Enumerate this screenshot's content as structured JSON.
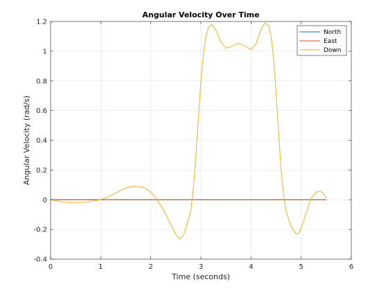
{
  "chart_data": {
    "type": "line",
    "title": "Angular Velocity Over Time",
    "xlabel": "Time (seconds)",
    "ylabel": "Angular Velocity (rad/s)",
    "xlim": [
      0,
      6
    ],
    "ylim": [
      -0.4,
      1.2
    ],
    "xticks": [
      0,
      1,
      2,
      3,
      4,
      5,
      6
    ],
    "yticks": [
      -0.4,
      -0.2,
      0,
      0.2,
      0.4,
      0.6,
      0.8,
      1,
      1.2
    ],
    "xtick_labels": [
      "0",
      "1",
      "2",
      "3",
      "4",
      "5",
      "6"
    ],
    "ytick_labels": [
      "-0.4",
      "-0.2",
      "0",
      "0.2",
      "0.4",
      "0.6",
      "0.8",
      "1",
      "1.2"
    ],
    "grid": true,
    "legend_position": "top-right",
    "series": [
      {
        "name": "North",
        "color": "#0072bd",
        "points": [
          [
            0,
            0
          ],
          [
            5.5,
            0
          ]
        ]
      },
      {
        "name": "East",
        "color": "#d95319",
        "points": [
          [
            0,
            0
          ],
          [
            5.5,
            0
          ]
        ]
      },
      {
        "name": "Down",
        "color": "#edb120",
        "points": [
          [
            0,
            0
          ],
          [
            0.1,
            -0.006
          ],
          [
            0.2,
            -0.012
          ],
          [
            0.3,
            -0.017
          ],
          [
            0.4,
            -0.02
          ],
          [
            0.5,
            -0.021
          ],
          [
            0.6,
            -0.02
          ],
          [
            0.7,
            -0.017
          ],
          [
            0.8,
            -0.012
          ],
          [
            0.9,
            -0.006
          ],
          [
            1.0,
            0
          ],
          [
            1.1,
            0.012
          ],
          [
            1.2,
            0.027
          ],
          [
            1.3,
            0.045
          ],
          [
            1.4,
            0.063
          ],
          [
            1.5,
            0.078
          ],
          [
            1.6,
            0.087
          ],
          [
            1.7,
            0.09
          ],
          [
            1.8,
            0.087
          ],
          [
            1.9,
            0.075
          ],
          [
            2.0,
            0.05
          ],
          [
            2.1,
            0.013
          ],
          [
            2.2,
            -0.04
          ],
          [
            2.3,
            -0.1
          ],
          [
            2.4,
            -0.17
          ],
          [
            2.5,
            -0.235
          ],
          [
            2.58,
            -0.265
          ],
          [
            2.65,
            -0.24
          ],
          [
            2.72,
            -0.17
          ],
          [
            2.8,
            -0.07
          ],
          [
            2.85,
            0.08
          ],
          [
            2.9,
            0.3
          ],
          [
            2.95,
            0.55
          ],
          [
            3.0,
            0.8
          ],
          [
            3.05,
            0.98
          ],
          [
            3.1,
            1.1
          ],
          [
            3.15,
            1.16
          ],
          [
            3.22,
            1.18
          ],
          [
            3.3,
            1.14
          ],
          [
            3.4,
            1.06
          ],
          [
            3.5,
            1.02
          ],
          [
            3.6,
            1.03
          ],
          [
            3.75,
            1.055
          ],
          [
            3.9,
            1.03
          ],
          [
            4.0,
            1.01
          ],
          [
            4.1,
            1.05
          ],
          [
            4.2,
            1.15
          ],
          [
            4.28,
            1.19
          ],
          [
            4.35,
            1.17
          ],
          [
            4.4,
            1.1
          ],
          [
            4.45,
            0.95
          ],
          [
            4.5,
            0.72
          ],
          [
            4.55,
            0.45
          ],
          [
            4.6,
            0.2
          ],
          [
            4.65,
            0.03
          ],
          [
            4.7,
            -0.08
          ],
          [
            4.8,
            -0.18
          ],
          [
            4.9,
            -0.23
          ],
          [
            4.95,
            -0.225
          ],
          [
            5.0,
            -0.19
          ],
          [
            5.1,
            -0.09
          ],
          [
            5.2,
            0.01
          ],
          [
            5.3,
            0.05
          ],
          [
            5.38,
            0.058
          ],
          [
            5.45,
            0.04
          ],
          [
            5.5,
            0.01
          ]
        ]
      }
    ]
  }
}
